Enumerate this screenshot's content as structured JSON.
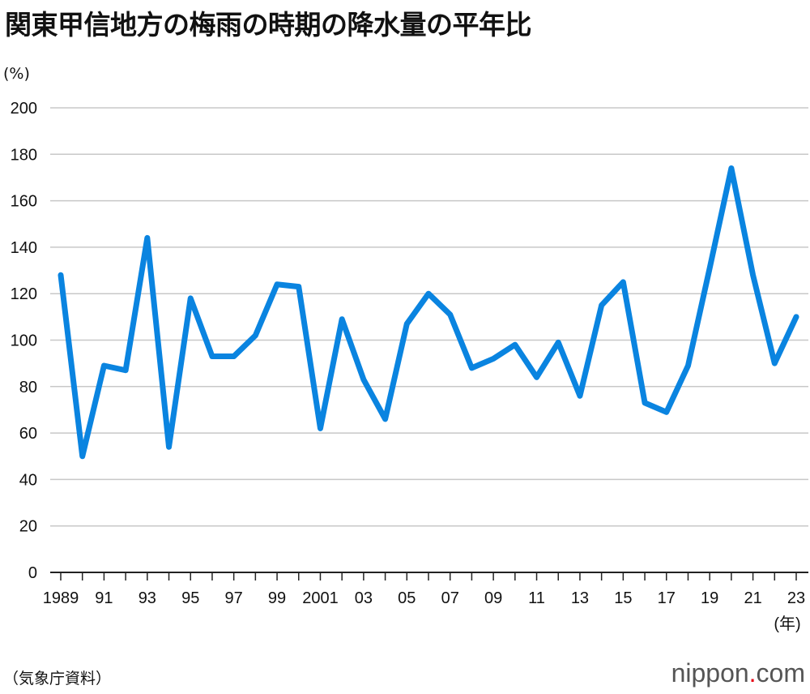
{
  "title": "関東甲信地方の梅雨の時期の降水量の平年比",
  "source": "（気象庁資料）",
  "logo": {
    "text": "nippon",
    "dot": ".",
    "suffix": "com"
  },
  "chart_data": {
    "type": "line",
    "title": "関東甲信地方の梅雨の時期の降水量の平年比",
    "ylabel": "(%)",
    "xlabel": "(年)",
    "ylim": [
      0,
      200
    ],
    "yticks": [
      0,
      20,
      40,
      60,
      80,
      100,
      120,
      140,
      160,
      180,
      200
    ],
    "grid": true,
    "line_color": "#0a84e0",
    "x": [
      1989,
      1990,
      1991,
      1992,
      1993,
      1994,
      1995,
      1996,
      1997,
      1998,
      1999,
      2000,
      2001,
      2002,
      2003,
      2004,
      2005,
      2006,
      2007,
      2008,
      2009,
      2010,
      2011,
      2012,
      2013,
      2014,
      2015,
      2016,
      2017,
      2018,
      2019,
      2020,
      2021,
      2022,
      2023
    ],
    "values": [
      128,
      50,
      89,
      87,
      144,
      54,
      118,
      93,
      93,
      102,
      124,
      123,
      62,
      109,
      83,
      66,
      107,
      120,
      111,
      88,
      92,
      98,
      84,
      99,
      76,
      115,
      125,
      73,
      69,
      89,
      131,
      174,
      128,
      90,
      110
    ],
    "xtick_labels": [
      {
        "year": 1989,
        "label": "1989"
      },
      {
        "year": 1991,
        "label": "91"
      },
      {
        "year": 1993,
        "label": "93"
      },
      {
        "year": 1995,
        "label": "95"
      },
      {
        "year": 1997,
        "label": "97"
      },
      {
        "year": 1999,
        "label": "99"
      },
      {
        "year": 2001,
        "label": "2001"
      },
      {
        "year": 2003,
        "label": "03"
      },
      {
        "year": 2005,
        "label": "05"
      },
      {
        "year": 2007,
        "label": "07"
      },
      {
        "year": 2009,
        "label": "09"
      },
      {
        "year": 2011,
        "label": "11"
      },
      {
        "year": 2013,
        "label": "13"
      },
      {
        "year": 2015,
        "label": "15"
      },
      {
        "year": 2017,
        "label": "17"
      },
      {
        "year": 2019,
        "label": "19"
      },
      {
        "year": 2021,
        "label": "21"
      },
      {
        "year": 2023,
        "label": "23"
      }
    ]
  }
}
